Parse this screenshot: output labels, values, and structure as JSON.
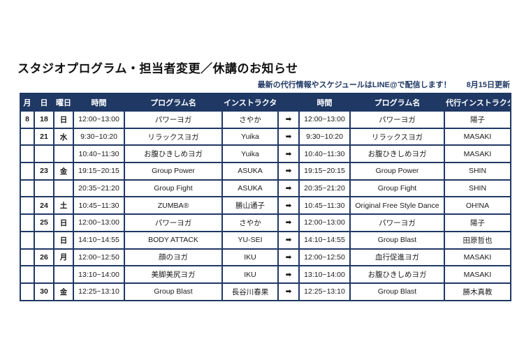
{
  "page": {
    "title": "スタジオプログラム・担当者変更／休講のお知らせ",
    "notice": "最新の代行情報やスケジュールはLINE@で配信します！",
    "updated": "8月15日更新"
  },
  "colors": {
    "navy": "#1F3864",
    "red": "#D04A42",
    "text": "#1A1A1A",
    "header_text": "#FFFFFF"
  },
  "table": {
    "arrow_glyph": "➡",
    "headers": [
      "月",
      "日",
      "曜日",
      "時間",
      "プログラム名",
      "インストラクター",
      "",
      "時間",
      "プログラム名",
      "代行インストラクター"
    ],
    "rows": [
      {
        "month": "8",
        "day": "18",
        "weekday": "日",
        "time": "12:00~13:00",
        "program": "パワーヨガ",
        "program_red": false,
        "instructor": "さやか",
        "new_time": "12:00~13:00",
        "new_program": "パワーヨガ",
        "new_program_red": false,
        "sub_instructor": "陽子"
      },
      {
        "month": "",
        "day": "21",
        "weekday": "水",
        "time": "9:30~10:20",
        "program": "リラックスヨガ",
        "program_red": false,
        "instructor": "Yuika",
        "new_time": "9:30~10:20",
        "new_program": "リラックスヨガ",
        "new_program_red": false,
        "sub_instructor": "MASAKI"
      },
      {
        "month": "",
        "day": "",
        "weekday": "",
        "time": "10:40~11:30",
        "program": "お腹ひきしめヨガ",
        "program_red": false,
        "instructor": "Yuika",
        "new_time": "10:40~11:30",
        "new_program": "お腹ひきしめヨガ",
        "new_program_red": false,
        "sub_instructor": "MASAKI"
      },
      {
        "month": "",
        "day": "23",
        "weekday": "金",
        "time": "19:15~20:15",
        "program": "Group Power",
        "program_red": false,
        "instructor": "ASUKA",
        "new_time": "19:15~20:15",
        "new_program": "Group Power",
        "new_program_red": false,
        "sub_instructor": "SHIN"
      },
      {
        "month": "",
        "day": "",
        "weekday": "",
        "time": "20:35~21:20",
        "program": "Group Fight",
        "program_red": false,
        "instructor": "ASUKA",
        "new_time": "20:35~21:20",
        "new_program": "Group Fight",
        "new_program_red": false,
        "sub_instructor": "SHIN"
      },
      {
        "month": "",
        "day": "24",
        "weekday": "土",
        "time": "10:45~11:30",
        "program": "ZUMBA®",
        "program_red": true,
        "instructor": "勝山通子",
        "new_time": "10:45~11:30",
        "new_program": "Original Free Style Dance",
        "new_program_red": true,
        "sub_instructor": "OH!NA"
      },
      {
        "month": "",
        "day": "25",
        "weekday": "日",
        "time": "12:00~13:00",
        "program": "パワーヨガ",
        "program_red": false,
        "instructor": "さやか",
        "new_time": "12:00~13:00",
        "new_program": "パワーヨガ",
        "new_program_red": false,
        "sub_instructor": "陽子"
      },
      {
        "month": "",
        "day": "",
        "weekday": "日",
        "time": "14:10~14:55",
        "program": "BODY ATTACK",
        "program_red": false,
        "instructor": "YU-SEI",
        "new_time": "14:10~14:55",
        "new_program": "Group Blast",
        "new_program_red": true,
        "sub_instructor": "田原哲也"
      },
      {
        "month": "",
        "day": "26",
        "weekday": "月",
        "time": "12:00~12:50",
        "program": "顔のヨガ",
        "program_red": true,
        "instructor": "IKU",
        "new_time": "12:00~12:50",
        "new_program": "血行促進ヨガ",
        "new_program_red": true,
        "sub_instructor": "MASAKI"
      },
      {
        "month": "",
        "day": "",
        "weekday": "",
        "time": "13:10~14:00",
        "program": "美脚美尻ヨガ",
        "program_red": true,
        "instructor": "IKU",
        "new_time": "13:10~14:00",
        "new_program": "お腹ひきしめヨガ",
        "new_program_red": true,
        "sub_instructor": "MASAKI"
      },
      {
        "month": "",
        "day": "30",
        "weekday": "金",
        "time": "12:25~13:10",
        "program": "Group Blast",
        "program_red": false,
        "instructor": "長谷川春果",
        "new_time": "12:25~13:10",
        "new_program": "Group Blast",
        "new_program_red": false,
        "sub_instructor": "勝木真教"
      }
    ]
  }
}
